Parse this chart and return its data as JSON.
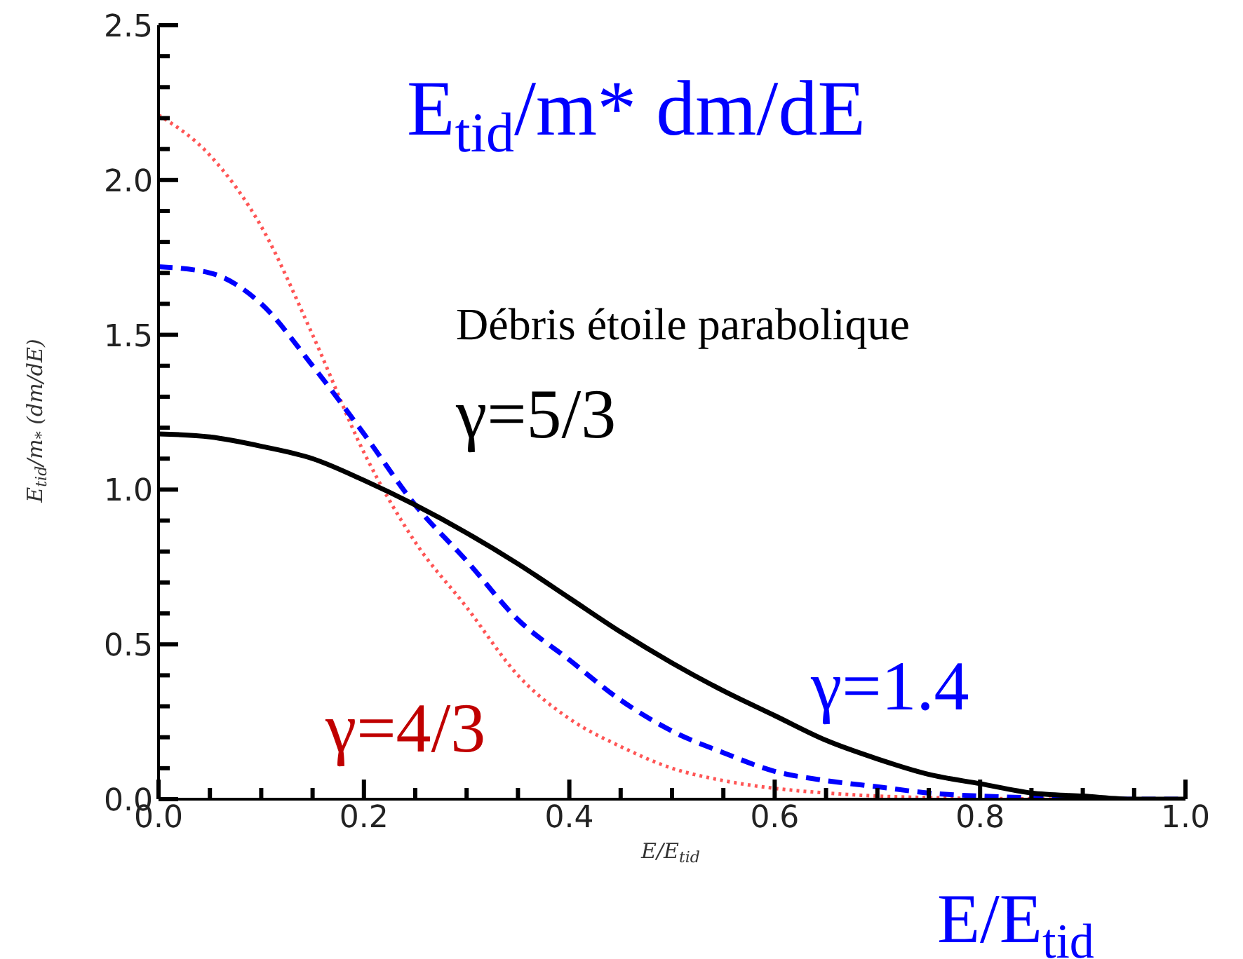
{
  "chart_data": {
    "type": "line",
    "title": "E$_{tid}$/m* dm/dE",
    "xlabel": "E/E$_{tid}$",
    "ylabel": "E$_{tid}$/m$_{*}$ (dm/dE)",
    "annotations": [
      "Débris étoile parabolique",
      "γ=5/3",
      "γ=4/3",
      "γ=1.4",
      "E/E$_{tid}$"
    ],
    "x": [
      0,
      0.05,
      0.1,
      0.15,
      0.2,
      0.25,
      0.3,
      0.35,
      0.4,
      0.45,
      0.5,
      0.55,
      0.6,
      0.65,
      0.7,
      0.75,
      0.8,
      0.85,
      0.9,
      0.95,
      1.0
    ],
    "series": [
      {
        "color": "#ff5555",
        "line_style": "dotted",
        "values": [
          2.21,
          2.08,
          1.85,
          1.5,
          1.12,
          0.83,
          0.62,
          0.4,
          0.26,
          0.17,
          0.1,
          0.06,
          0.035,
          0.02,
          0.01,
          0.005,
          null,
          0.001,
          0,
          0,
          0
        ]
      },
      {
        "color": "#0000ff",
        "line_style": "dashed",
        "values": [
          1.72,
          1.7,
          1.6,
          1.4,
          1.18,
          0.95,
          0.77,
          0.58,
          0.45,
          0.32,
          0.22,
          0.15,
          0.09,
          0.06,
          0.04,
          0.02,
          0.01,
          0.005,
          null,
          0,
          0
        ]
      },
      {
        "color": "#000000",
        "line_style": "solid",
        "values": [
          1.18,
          1.17,
          1.14,
          1.1,
          1.03,
          0.95,
          0.86,
          0.76,
          0.65,
          0.54,
          0.44,
          0.35,
          0.27,
          0.19,
          0.13,
          0.08,
          0.05,
          0.02,
          0.01,
          0,
          0
        ]
      }
    ],
    "xlim": [
      0,
      1
    ],
    "ylim": [
      0,
      2.5
    ],
    "xticks": [
      {
        "value": 0,
        "label": "0.0"
      },
      {
        "value": 0.05,
        "label": null
      },
      {
        "value": 0.1,
        "label": null
      },
      {
        "value": 0.15,
        "label": null
      },
      0.2,
      {
        "value": 0.25,
        "label": null
      },
      {
        "value": 0.3,
        "label": null
      },
      {
        "value": 0.35,
        "label": null
      },
      0.4,
      {
        "value": 0.45,
        "label": null
      },
      {
        "value": 0.5,
        "label": null
      },
      {
        "value": 0.55,
        "label": null
      },
      0.6,
      {
        "value": 0.65,
        "label": null
      },
      {
        "value": 0.7,
        "label": null
      },
      {
        "value": 0.75,
        "label": null
      },
      0.8,
      {
        "value": 0.85,
        "label": null
      },
      {
        "value": 0.9,
        "label": null
      },
      {
        "value": 0.95,
        "label": null
      },
      {
        "value": 1,
        "label": "1.0"
      }
    ],
    "yticks": [
      {
        "value": 0,
        "label": "0.0"
      },
      {
        "value": 0.1,
        "label": null
      },
      {
        "value": 0.2,
        "label": null
      },
      {
        "value": 0.3,
        "label": null
      },
      {
        "value": 0.4,
        "label": null
      },
      0.5,
      {
        "value": 0.6,
        "label": null
      },
      {
        "value": 0.7,
        "label": null
      },
      {
        "value": 0.8,
        "label": null
      },
      {
        "value": 0.9,
        "label": null
      },
      {
        "value": 1,
        "label": "1.0"
      },
      {
        "value": 1.1,
        "label": null
      },
      {
        "value": 1.2,
        "label": null
      },
      {
        "value": 1.3,
        "label": null
      },
      {
        "value": 1.4,
        "label": null
      },
      1.5,
      {
        "value": 1.6,
        "label": null
      },
      {
        "value": 1.7,
        "label": null
      },
      {
        "value": 1.8,
        "label": null
      },
      {
        "value": 1.9,
        "label": null
      },
      {
        "value": 2,
        "label": "2.0"
      },
      {
        "value": 2.1,
        "label": null
      },
      {
        "value": 2.2,
        "label": null
      },
      {
        "value": 2.3,
        "label": null
      },
      {
        "value": 2.4,
        "label": null
      },
      2.5
    ],
    "grid": false,
    "legend": false,
    "marker": "none"
  }
}
